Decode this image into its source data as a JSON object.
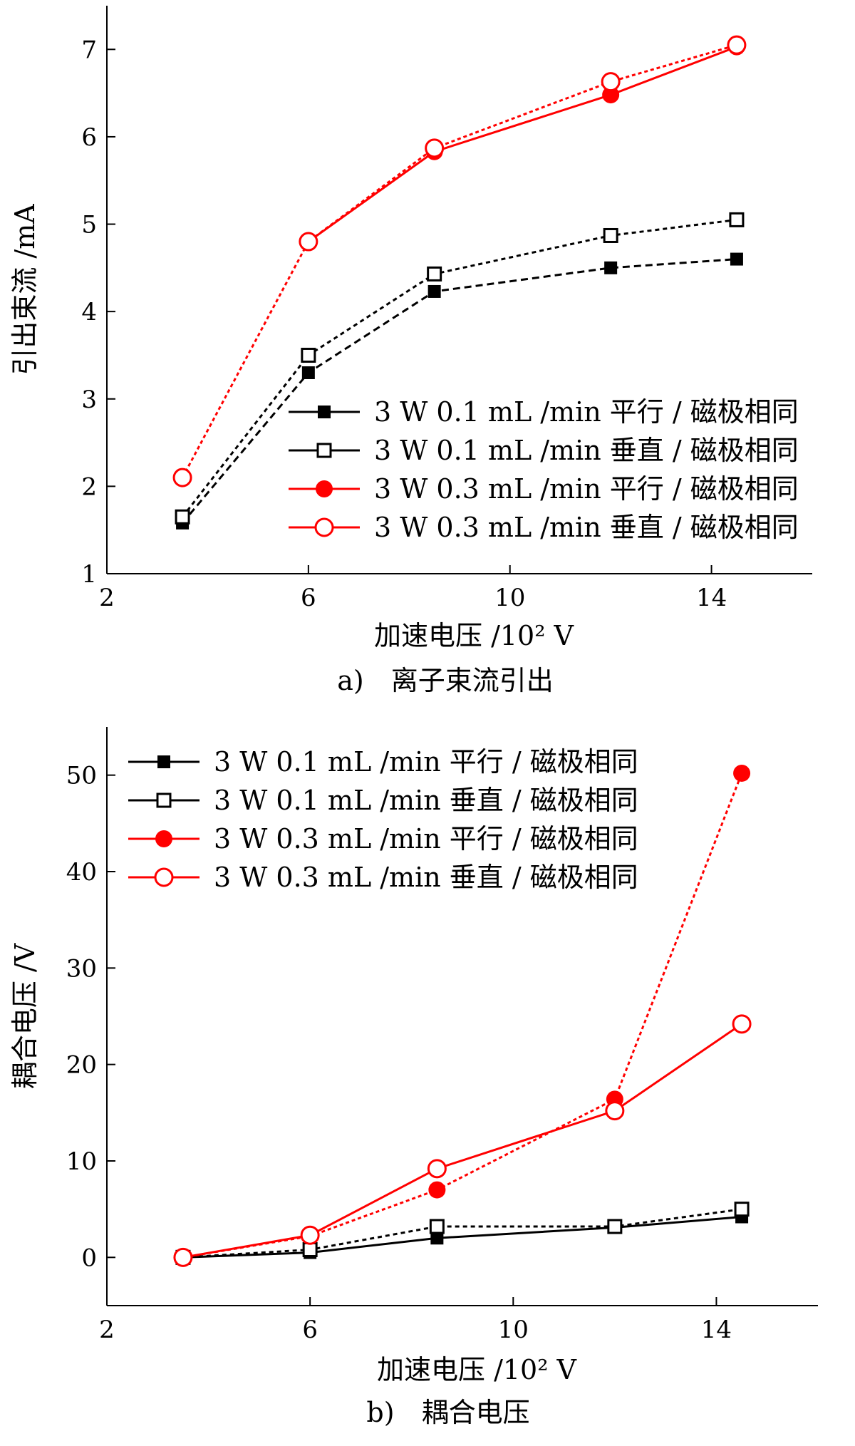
{
  "chart_data": [
    {
      "type": "line",
      "caption": "a)　离子束流引出",
      "xlabel": "加速电压 /10² V",
      "ylabel": "引出束流 /mA",
      "xlim": [
        2,
        16
      ],
      "ylim": [
        1,
        7.5
      ],
      "xticks": [
        2,
        6,
        10,
        14
      ],
      "yticks": [
        1,
        2,
        3,
        4,
        5,
        6,
        7
      ],
      "grid": false,
      "legend_position": "bottom-right",
      "series": [
        {
          "name": "3 W 0.1 mL /min 平行 / 磁极相同",
          "color": "#000000",
          "marker": "filled-square",
          "x": [
            3.5,
            6,
            8.5,
            12,
            14.5
          ],
          "y": [
            1.58,
            3.3,
            4.23,
            4.5,
            4.6
          ]
        },
        {
          "name": "3 W 0.1 mL /min 垂直 / 磁极相同",
          "color": "#000000",
          "marker": "open-square",
          "x": [
            3.5,
            6,
            8.5,
            12,
            14.5
          ],
          "y": [
            1.65,
            3.5,
            4.43,
            4.87,
            5.05
          ]
        },
        {
          "name": "3 W 0.3 mL /min 平行 / 磁极相同",
          "color": "#ff0000",
          "marker": "filled-circle",
          "x": [
            6,
            8.5,
            12,
            14.5
          ],
          "y": [
            4.8,
            5.83,
            6.48,
            7.03
          ]
        },
        {
          "name": "3 W 0.3 mL /min 垂直 / 磁极相同",
          "color": "#ff0000",
          "marker": "open-circle",
          "x": [
            3.5,
            6,
            8.5,
            12,
            14.5
          ],
          "y": [
            2.1,
            4.8,
            5.87,
            6.63,
            7.05
          ]
        }
      ]
    },
    {
      "type": "line",
      "caption": "b)　耦合电压",
      "xlabel": "加速电压 /10² V",
      "ylabel": "耦合电压 /V",
      "xlim": [
        2,
        16
      ],
      "ylim": [
        -5,
        55
      ],
      "xticks": [
        2,
        6,
        10,
        14
      ],
      "yticks": [
        0,
        10,
        20,
        30,
        40,
        50
      ],
      "grid": false,
      "legend_position": "top-left",
      "series": [
        {
          "name": "3 W 0.1 mL /min 平行 / 磁极相同",
          "color": "#000000",
          "marker": "filled-square",
          "x": [
            3.5,
            6,
            8.5,
            12,
            14.5
          ],
          "y": [
            0,
            0.5,
            2.0,
            3.1,
            4.2
          ]
        },
        {
          "name": "3 W 0.1 mL /min 垂直 / 磁极相同",
          "color": "#000000",
          "marker": "open-square",
          "x": [
            3.5,
            6,
            8.5,
            12,
            14.5
          ],
          "y": [
            0,
            0.8,
            3.2,
            3.2,
            5.0
          ]
        },
        {
          "name": "3 W 0.3 mL /min 平行 / 磁极相同",
          "color": "#ff0000",
          "marker": "filled-circle",
          "x": [
            3.5,
            6,
            8.5,
            12,
            14.5
          ],
          "y": [
            0,
            2.2,
            7.0,
            16.4,
            50.2
          ]
        },
        {
          "name": "3 W 0.3 mL /min 垂直 / 磁极相同",
          "color": "#ff0000",
          "marker": "open-circle",
          "x": [
            3.5,
            6,
            8.5,
            12,
            14.5
          ],
          "y": [
            0,
            2.3,
            9.2,
            15.2,
            24.2
          ]
        }
      ]
    }
  ]
}
